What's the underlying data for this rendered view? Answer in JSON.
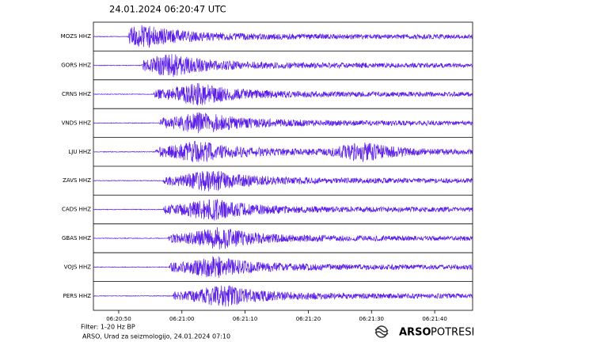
{
  "chart_data": {
    "type": "seismogram",
    "title": "24.01.2024  06:20:47 UTC",
    "xlim": [
      46,
      106
    ],
    "xticks": [
      {
        "value": 50,
        "label": "06:20:50"
      },
      {
        "value": 60,
        "label": "06:21:00"
      },
      {
        "value": 70,
        "label": "06:21:10"
      },
      {
        "value": 80,
        "label": "06:21:20"
      },
      {
        "value": 90,
        "label": "06:21:30"
      },
      {
        "value": 100,
        "label": "06:21:40"
      }
    ],
    "color": "#5b1ee8",
    "stations": [
      {
        "name": "MOZS HHZ",
        "onset": 51.5,
        "peaks": [
          54.5
        ]
      },
      {
        "name": "GORS HHZ",
        "onset": 53.6,
        "peaks": [
          58.6
        ]
      },
      {
        "name": "CRNS HHZ",
        "onset": 55.5,
        "peaks": [
          63
        ]
      },
      {
        "name": "VNDS HHZ",
        "onset": 56.4,
        "peaks": [
          63.6
        ]
      },
      {
        "name": "LJU HHZ",
        "onset": 55.8,
        "peaks": [
          63,
          89
        ]
      },
      {
        "name": "ZAVS HHZ",
        "onset": 57,
        "peaks": [
          65
        ]
      },
      {
        "name": "CADS HHZ",
        "onset": 57,
        "peaks": [
          65
        ]
      },
      {
        "name": "GBAS HHZ",
        "onset": 57.8,
        "peaks": [
          66.4
        ]
      },
      {
        "name": "VOJS HHZ",
        "onset": 58,
        "peaks": [
          65.5
        ]
      },
      {
        "name": "PERS HHZ",
        "onset": 58.5,
        "peaks": [
          67
        ]
      }
    ],
    "footer": [
      "Filter: 1-20 Hz BP",
      "ARSO, Urad za seizmologijo, 24.01.2024  07:10"
    ],
    "logo": {
      "brand": "ARSO",
      "product": "POTRESI"
    }
  }
}
